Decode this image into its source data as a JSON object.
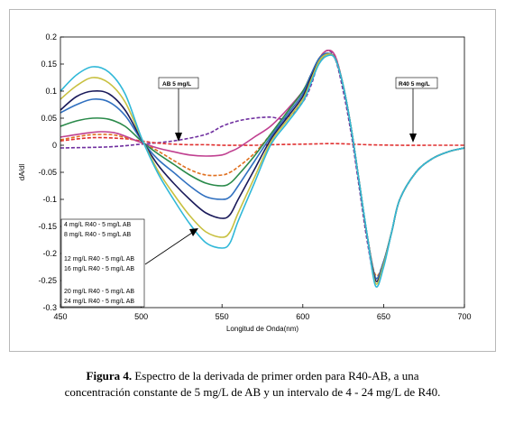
{
  "chart_data": {
    "type": "line",
    "title": "",
    "xlabel": "Longitud de Onda(nm)",
    "ylabel": "dA/dl",
    "xlim": [
      450,
      700
    ],
    "ylim": [
      -0.3,
      0.2
    ],
    "xticks": [
      450,
      500,
      550,
      600,
      650,
      700
    ],
    "yticks": [
      0.2,
      0.15,
      0.1,
      0.05,
      0,
      -0.05,
      -0.1,
      -0.15,
      -0.2,
      -0.25,
      -0.3
    ],
    "ytick_labels": [
      "0.2",
      "0.15",
      "0.1",
      "0.05",
      "0",
      "-0.05",
      "-0.1",
      "-0.15",
      "-0.2",
      "-0.25",
      "-0.3"
    ],
    "grid": false,
    "legend_lines": [
      "4 mg/L R40 - 5 mg/L AB",
      "8 mg/L R40 - 5 mg/L AB",
      "12 mg/L R40 - 5 mg/L AB",
      "16 mg/L R40 - 5 mg/L AB",
      "20 mg/L R40 - 5 mg/L AB",
      "24 mg/L R40 - 5 mg/L AB"
    ],
    "annotations": [
      {
        "text": "AB 5 mg/L",
        "x": 508,
        "y": 0.032
      },
      {
        "text": "R40 5 mg/L",
        "x": 666,
        "y": 0.0
      }
    ],
    "series": [
      {
        "color": "#7030a0",
        "dash": "dash",
        "x": [
          450,
          480,
          500,
          520,
          540,
          550,
          560,
          570,
          580,
          590,
          600,
          605,
          610,
          615,
          620,
          625,
          630,
          635,
          640,
          645,
          650,
          655,
          660,
          670,
          680,
          690,
          700
        ],
        "y": [
          -0.005,
          -0.003,
          0.002,
          0.008,
          0.02,
          0.035,
          0.045,
          0.05,
          0.052,
          0.05,
          0.08,
          0.11,
          0.155,
          0.175,
          0.16,
          0.1,
          0.02,
          -0.08,
          -0.18,
          -0.25,
          -0.22,
          -0.16,
          -0.1,
          -0.05,
          -0.025,
          -0.012,
          -0.005
        ]
      },
      {
        "color": "#e03030",
        "dash": "dash",
        "x": [
          450,
          470,
          490,
          500,
          510,
          520,
          530,
          540,
          550,
          560,
          570,
          580,
          600,
          620,
          640,
          660,
          680,
          700
        ],
        "y": [
          0.008,
          0.014,
          0.012,
          0.008,
          0.004,
          0.002,
          0.001,
          0.001,
          0.0,
          0.0,
          0.0,
          0.001,
          0.002,
          0.003,
          0.001,
          0.0,
          0.0,
          0.0
        ]
      },
      {
        "color": "#e07020",
        "dash": "dash",
        "x": [
          450,
          465,
          475,
          485,
          500,
          510,
          520,
          530,
          540,
          550,
          555,
          560,
          570,
          580,
          590,
          600,
          605,
          610,
          615,
          620,
          625,
          630,
          635,
          640,
          645,
          650,
          655,
          660,
          670,
          680,
          690,
          700
        ],
        "y": [
          0.01,
          0.018,
          0.02,
          0.018,
          0.005,
          -0.01,
          -0.028,
          -0.045,
          -0.055,
          -0.055,
          -0.05,
          -0.04,
          -0.015,
          0.02,
          0.06,
          0.1,
          0.13,
          0.16,
          0.175,
          0.165,
          0.11,
          0.03,
          -0.07,
          -0.17,
          -0.24,
          -0.215,
          -0.16,
          -0.1,
          -0.05,
          -0.025,
          -0.012,
          -0.005
        ]
      },
      {
        "color": "#c04090",
        "dash": "",
        "x": [
          450,
          465,
          475,
          485,
          500,
          510,
          520,
          530,
          540,
          550,
          555,
          560,
          570,
          580,
          590,
          600,
          605,
          610,
          615,
          620,
          625,
          630,
          635,
          640,
          645,
          650,
          655,
          660,
          670,
          680,
          690,
          700
        ],
        "y": [
          0.015,
          0.022,
          0.025,
          0.022,
          0.005,
          -0.005,
          -0.012,
          -0.018,
          -0.02,
          -0.018,
          -0.012,
          -0.005,
          0.015,
          0.035,
          0.065,
          0.1,
          0.13,
          0.16,
          0.175,
          0.165,
          0.11,
          0.03,
          -0.07,
          -0.17,
          -0.245,
          -0.215,
          -0.16,
          -0.1,
          -0.05,
          -0.025,
          -0.012,
          -0.005
        ]
      },
      {
        "color": "#2a8a4a",
        "dash": "",
        "x": [
          450,
          460,
          470,
          480,
          490,
          500,
          510,
          520,
          530,
          540,
          550,
          555,
          560,
          570,
          580,
          590,
          600,
          605,
          610,
          615,
          620,
          625,
          630,
          635,
          640,
          645,
          650,
          655,
          660,
          670,
          680,
          690,
          700
        ],
        "y": [
          0.035,
          0.045,
          0.05,
          0.048,
          0.035,
          0.008,
          -0.015,
          -0.035,
          -0.055,
          -0.07,
          -0.075,
          -0.07,
          -0.055,
          -0.02,
          0.02,
          0.06,
          0.1,
          0.13,
          0.16,
          0.17,
          0.16,
          0.11,
          0.03,
          -0.07,
          -0.17,
          -0.245,
          -0.215,
          -0.16,
          -0.1,
          -0.05,
          -0.025,
          -0.012,
          -0.005
        ]
      },
      {
        "color": "#3070c0",
        "dash": "",
        "x": [
          450,
          460,
          470,
          480,
          490,
          500,
          510,
          520,
          530,
          540,
          550,
          555,
          560,
          570,
          580,
          590,
          600,
          605,
          610,
          615,
          620,
          625,
          630,
          635,
          640,
          645,
          650,
          655,
          660,
          670,
          680,
          690,
          700
        ],
        "y": [
          0.06,
          0.075,
          0.085,
          0.08,
          0.055,
          0.01,
          -0.025,
          -0.05,
          -0.075,
          -0.095,
          -0.1,
          -0.095,
          -0.075,
          -0.03,
          0.015,
          0.055,
          0.095,
          0.13,
          0.16,
          0.17,
          0.16,
          0.11,
          0.03,
          -0.07,
          -0.17,
          -0.245,
          -0.215,
          -0.16,
          -0.1,
          -0.05,
          -0.025,
          -0.012,
          -0.005
        ]
      },
      {
        "color": "#1a1a5a",
        "dash": "",
        "x": [
          450,
          460,
          470,
          480,
          490,
          500,
          510,
          520,
          530,
          540,
          550,
          555,
          560,
          570,
          580,
          590,
          600,
          605,
          610,
          615,
          620,
          625,
          630,
          635,
          640,
          645,
          650,
          655,
          660,
          670,
          680,
          690,
          700
        ],
        "y": [
          0.065,
          0.09,
          0.1,
          0.095,
          0.065,
          0.012,
          -0.035,
          -0.07,
          -0.1,
          -0.125,
          -0.135,
          -0.128,
          -0.1,
          -0.045,
          0.01,
          0.05,
          0.09,
          0.125,
          0.155,
          0.168,
          0.16,
          0.11,
          0.03,
          -0.07,
          -0.17,
          -0.25,
          -0.22,
          -0.16,
          -0.1,
          -0.05,
          -0.025,
          -0.012,
          -0.005
        ]
      },
      {
        "color": "#c8c040",
        "dash": "",
        "x": [
          450,
          460,
          470,
          480,
          490,
          500,
          510,
          520,
          530,
          540,
          550,
          555,
          560,
          570,
          580,
          590,
          600,
          605,
          610,
          615,
          620,
          625,
          630,
          635,
          640,
          645,
          650,
          655,
          660,
          670,
          680,
          690,
          700
        ],
        "y": [
          0.085,
          0.11,
          0.125,
          0.115,
          0.08,
          0.014,
          -0.045,
          -0.09,
          -0.13,
          -0.16,
          -0.17,
          -0.16,
          -0.125,
          -0.06,
          0.005,
          0.045,
          0.085,
          0.12,
          0.155,
          0.168,
          0.16,
          0.11,
          0.03,
          -0.07,
          -0.17,
          -0.255,
          -0.22,
          -0.16,
          -0.1,
          -0.05,
          -0.025,
          -0.012,
          -0.005
        ]
      },
      {
        "color": "#30b8d8",
        "dash": "",
        "x": [
          450,
          460,
          470,
          480,
          490,
          500,
          510,
          520,
          530,
          540,
          550,
          555,
          560,
          570,
          580,
          590,
          600,
          605,
          610,
          615,
          620,
          625,
          630,
          635,
          640,
          645,
          650,
          655,
          660,
          670,
          680,
          690,
          700
        ],
        "y": [
          0.1,
          0.13,
          0.145,
          0.135,
          0.095,
          0.015,
          -0.05,
          -0.1,
          -0.145,
          -0.18,
          -0.19,
          -0.18,
          -0.14,
          -0.07,
          0.0,
          0.04,
          0.08,
          0.115,
          0.15,
          0.165,
          0.16,
          0.11,
          0.03,
          -0.07,
          -0.17,
          -0.26,
          -0.225,
          -0.16,
          -0.1,
          -0.05,
          -0.025,
          -0.012,
          -0.005
        ]
      }
    ]
  },
  "caption": {
    "label": "Figura 4.",
    "line1": " Espectro de la derivada de primer orden para R40-AB, a una",
    "line2": "concentración constante de 5 mg/L de AB y un intervalo de 4 - 24 mg/L de R40."
  }
}
